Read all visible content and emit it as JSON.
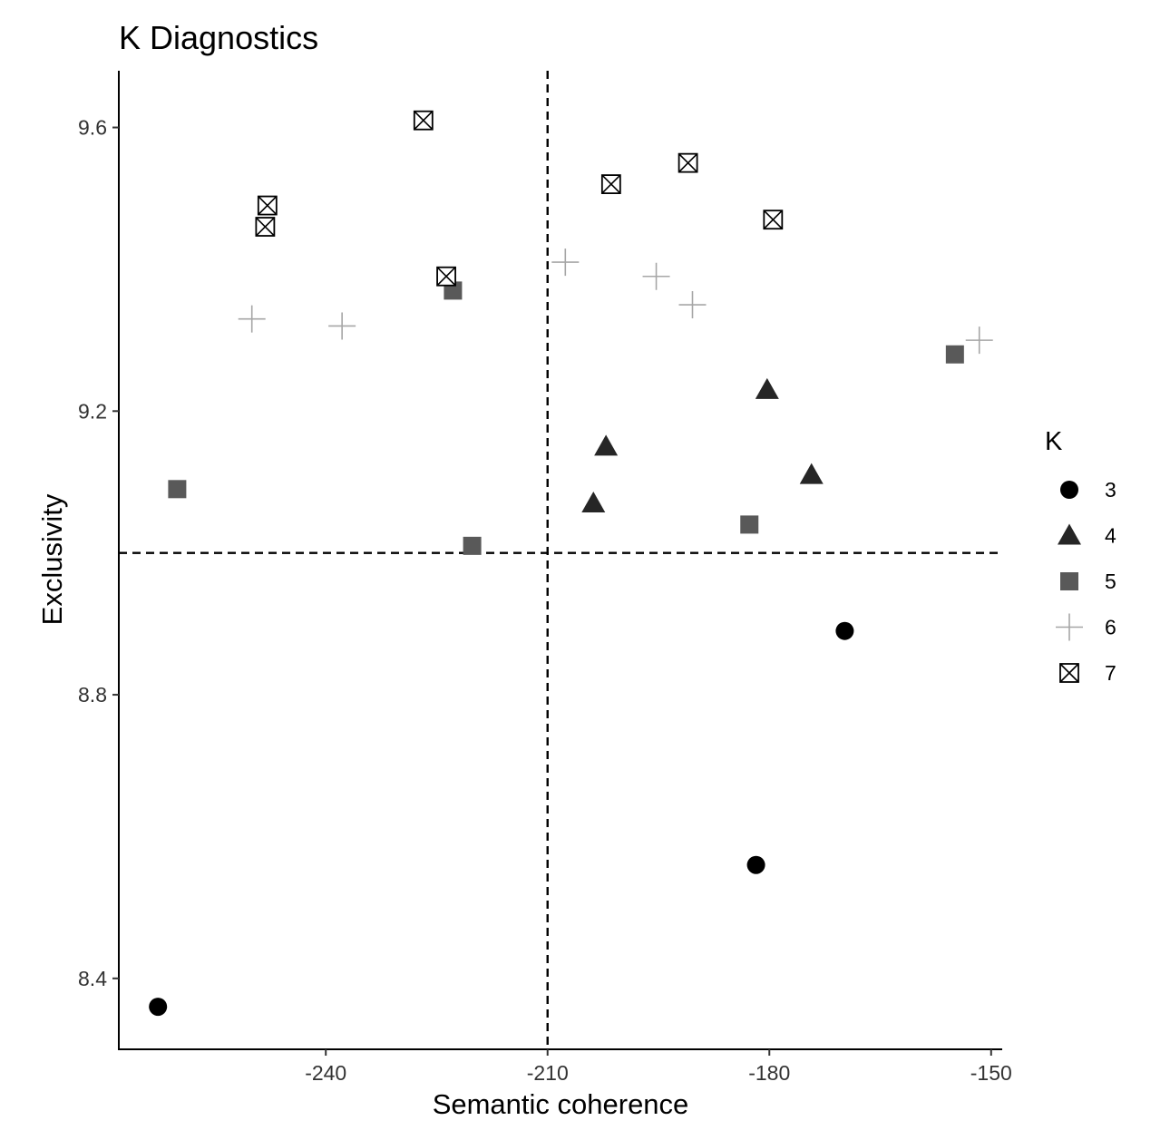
{
  "chart_data": {
    "type": "scatter",
    "title": "K Diagnostics",
    "xlabel": "Semantic coherence",
    "ylabel": "Exclusivity",
    "xlim": [
      -268,
      -148.5
    ],
    "ylim": [
      8.3,
      9.68
    ],
    "xticks": [
      -240,
      -210,
      -180,
      -150
    ],
    "yticks": [
      8.4,
      8.8,
      9.2,
      9.6
    ],
    "xtick_labels": [
      "-240",
      "-210",
      "-180",
      "-150"
    ],
    "ytick_labels": [
      "8.4",
      "8.8",
      "9.2",
      "9.6"
    ],
    "reference_lines": {
      "x": -210,
      "y": 9.0,
      "style": "dashed"
    },
    "grid": false,
    "legend": {
      "title": "K",
      "position": "right"
    },
    "series": [
      {
        "name": "3",
        "shape": "circle",
        "color": "#000000",
        "points": [
          [
            -262.7,
            8.36
          ],
          [
            -181.8,
            8.56
          ],
          [
            -169.8,
            8.89
          ]
        ]
      },
      {
        "name": "4",
        "shape": "triangle",
        "color": "#262626",
        "points": [
          [
            -203.8,
            9.07
          ],
          [
            -202.1,
            9.15
          ],
          [
            -180.3,
            9.23
          ],
          [
            -174.3,
            9.11
          ]
        ]
      },
      {
        "name": "5",
        "shape": "square",
        "color": "#595959",
        "points": [
          [
            -260.1,
            9.09
          ],
          [
            -222.8,
            9.37
          ],
          [
            -220.2,
            9.01
          ],
          [
            -182.7,
            9.04
          ],
          [
            -154.9,
            9.28
          ]
        ]
      },
      {
        "name": "6",
        "shape": "plus",
        "color": "#a6a6a6",
        "points": [
          [
            -250.0,
            9.33
          ],
          [
            -237.8,
            9.32
          ],
          [
            -207.6,
            9.41
          ],
          [
            -195.3,
            9.39
          ],
          [
            -190.4,
            9.35
          ],
          [
            -151.6,
            9.3
          ]
        ]
      },
      {
        "name": "7",
        "shape": "square-x",
        "color": "#000000",
        "points": [
          [
            -226.8,
            9.61
          ],
          [
            -247.9,
            9.49
          ],
          [
            -248.2,
            9.46
          ],
          [
            -223.7,
            9.39
          ],
          [
            -201.4,
            9.52
          ],
          [
            -191.0,
            9.55
          ],
          [
            -179.5,
            9.47
          ]
        ]
      }
    ]
  }
}
